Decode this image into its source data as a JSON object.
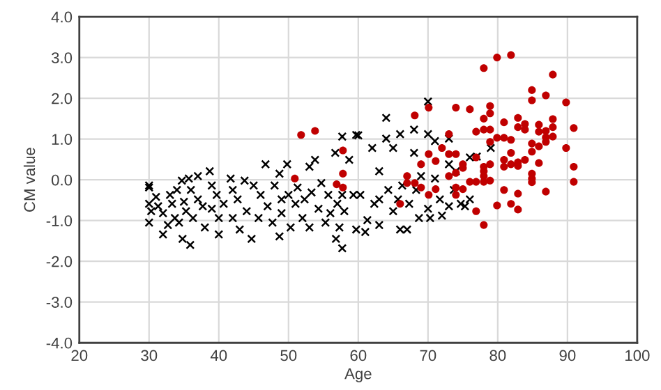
{
  "chart_data": {
    "type": "scatter",
    "xlabel": "Age",
    "ylabel": "CM value",
    "xlim": [
      20,
      100
    ],
    "xticks": [
      20,
      30,
      40,
      50,
      60,
      70,
      80,
      90,
      100
    ],
    "ylim": [
      -4.0,
      4.0
    ],
    "yticks": [
      {
        "value": -4,
        "label": "-4.0"
      },
      {
        "value": -3,
        "label": "-3.0"
      },
      {
        "value": -2,
        "label": "-2.0"
      },
      {
        "value": -1,
        "label": "-1.0"
      },
      {
        "value": 0,
        "label": "0.0"
      },
      {
        "value": 1,
        "label": "1.0"
      },
      {
        "value": 2,
        "label": "2.0"
      },
      {
        "value": 3,
        "label": "3.0"
      },
      {
        "value": 4,
        "label": "4.0"
      }
    ],
    "grid": true,
    "series": [
      {
        "color": "#000000",
        "marker": "cross",
        "x": [
          30,
          30,
          30,
          30,
          30.3,
          31,
          31.3,
          32,
          32,
          32.7,
          33,
          33.3,
          33.7,
          34,
          34.3,
          34.7,
          34.8,
          35,
          35.3,
          35.9,
          35.7,
          36,
          36.3,
          37,
          37,
          37.7,
          38,
          38.7,
          39,
          39,
          39.7,
          40,
          40,
          40.7,
          41.7,
          42,
          42,
          42.7,
          43,
          43.7,
          44,
          44.7,
          45,
          45.7,
          46,
          46.7,
          47,
          47.7,
          48,
          48.7,
          48.7,
          49,
          49,
          49.8,
          50,
          50.3,
          51,
          51.3,
          52,
          52.3,
          53,
          53,
          53.3,
          53.8,
          54.3,
          54.7,
          55.3,
          55.7,
          56,
          56.7,
          56.8,
          57,
          57.3,
          57.7,
          57.7,
          57.7,
          58,
          58.7,
          59.7,
          59.7,
          59.3,
          60,
          60.3,
          61,
          61.3,
          62,
          62.3,
          63,
          63,
          64,
          64,
          64.3,
          65,
          65,
          66,
          66,
          66.3,
          67,
          67.3,
          68,
          68,
          68.7,
          69,
          70,
          70,
          70,
          70.3,
          71,
          71,
          71.7,
          72,
          73,
          73,
          73,
          73.7,
          74.7,
          75.3,
          76,
          76,
          77,
          74,
          79,
          63,
          65.7,
          68.3
        ],
        "values": [
          -0.14,
          -0.19,
          -0.59,
          -1.05,
          -0.77,
          -0.42,
          -0.65,
          -0.82,
          -1.34,
          -1.11,
          -0.37,
          -0.59,
          -0.94,
          -0.25,
          -1.05,
          -0.02,
          -1.45,
          -0.54,
          -0.77,
          -1.6,
          0.03,
          -0.25,
          -0.94,
          0.09,
          -0.48,
          -0.65,
          -1.17,
          0.21,
          -0.14,
          -0.71,
          -0.37,
          -1.34,
          -0.94,
          -0.59,
          0.03,
          -0.25,
          -0.94,
          -0.48,
          -1.22,
          -0.02,
          -0.77,
          -1.45,
          -0.14,
          -0.94,
          -0.37,
          0.38,
          -0.65,
          -1.05,
          -0.14,
          -1.39,
          0.15,
          -0.48,
          -0.82,
          0.38,
          -0.37,
          -1.17,
          -0.59,
          -0.19,
          -0.94,
          -0.48,
          0.32,
          -1.17,
          -0.31,
          0.49,
          -0.71,
          -0.08,
          -1.05,
          -0.37,
          -0.82,
          0.66,
          -1.45,
          -0.59,
          -1.17,
          1.06,
          -1.68,
          -0.37,
          -0.77,
          0.49,
          1.1,
          -1.22,
          -0.37,
          1.09,
          -0.37,
          -1.28,
          -0.99,
          0.78,
          -0.59,
          0.21,
          -1.11,
          1.52,
          1.01,
          -0.25,
          0.78,
          -0.77,
          -1.22,
          1.12,
          -0.14,
          -1.22,
          -0.59,
          1.23,
          0.66,
          -0.94,
          0.09,
          1.92,
          1.12,
          -0.71,
          -0.94,
          0.95,
          0.03,
          -0.48,
          -0.88,
          1.01,
          0.38,
          -0.65,
          -0.25,
          -0.59,
          -0.65,
          0.55,
          -0.48,
          0.57,
          0.21,
          0.78,
          -0.48,
          -0.48,
          -0.25
        ]
      },
      {
        "color": "#c00000",
        "marker": "circle",
        "x": [
          78,
          79.9,
          81.9,
          87.9,
          84.9,
          84.9,
          86.9,
          89.8,
          68.1,
          70.1,
          74,
          76,
          78.9,
          78.9,
          78,
          80.9,
          82.9,
          83.9,
          83.9,
          85.9,
          87.9,
          87.9,
          76.9,
          78,
          78.9,
          82.9,
          85.9,
          86.9,
          86.9,
          87.9,
          90.9,
          73,
          79.9,
          80.9,
          81.9,
          78.9,
          72,
          73,
          74,
          84.9,
          85.9,
          86.9,
          89.8,
          70.1,
          71.1,
          69,
          81.9,
          84.9,
          76.9,
          78.9,
          78,
          80.9,
          80.9,
          81.9,
          82.9,
          83.9,
          82.9,
          85.9,
          75,
          75,
          74,
          73,
          76,
          76.9,
          78,
          78.9,
          78,
          78,
          84.9,
          84.9,
          84.9,
          90.9,
          90.9,
          67,
          67,
          68.1,
          69,
          71.1,
          70.1,
          74,
          74,
          75,
          80.9,
          82.9,
          86.9,
          81.9,
          79.9,
          82.9,
          76.9,
          78,
          66,
          51.8,
          53.8,
          57.8,
          57.8,
          50.9,
          56.9,
          57.8
        ],
        "values": [
          2.74,
          3.0,
          3.06,
          2.58,
          2.2,
          1.95,
          2.07,
          1.9,
          1.58,
          1.77,
          1.77,
          1.73,
          1.81,
          1.63,
          1.5,
          1.41,
          1.52,
          1.37,
          1.23,
          1.35,
          1.49,
          1.29,
          1.18,
          1.23,
          1.23,
          1.29,
          1.18,
          1.2,
          1.04,
          1.06,
          1.27,
          1.12,
          1.03,
          1.03,
          0.98,
          0.93,
          0.78,
          0.63,
          0.63,
          0.89,
          0.82,
          0.93,
          0.78,
          0.63,
          0.46,
          0.38,
          0.66,
          0.69,
          0.55,
          0.38,
          0.32,
          0.49,
          0.32,
          0.38,
          0.43,
          0.49,
          0.34,
          0.41,
          0.38,
          0.29,
          0.17,
          0.09,
          -0.05,
          -0.05,
          -0.05,
          -0.02,
          0.09,
          0.21,
          0.15,
          0.03,
          -0.06,
          0.32,
          -0.05,
          0.09,
          -0.08,
          -0.08,
          -0.19,
          -0.23,
          -0.37,
          -0.19,
          -0.37,
          -0.23,
          -0.25,
          -0.34,
          -0.29,
          -0.59,
          -0.63,
          -0.73,
          -0.77,
          -1.11,
          -0.59,
          1.1,
          1.2,
          0.72,
          0.15,
          0.03,
          -0.11,
          -0.19
        ]
      }
    ]
  }
}
